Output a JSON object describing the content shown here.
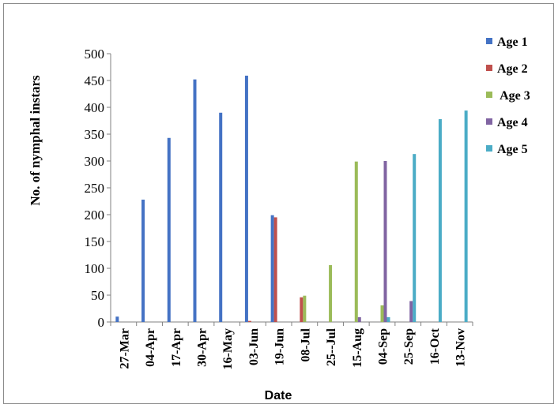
{
  "chart_data": {
    "type": "bar",
    "xlabel": "Date",
    "ylabel": "No. of nymphal instars",
    "ylim": [
      0,
      500
    ],
    "yticks": [
      0,
      50,
      100,
      150,
      200,
      250,
      300,
      350,
      400,
      450,
      500
    ],
    "grid": false,
    "legend_position": "right",
    "categories": [
      "27-Mar",
      "04-Apr",
      "17-Apr",
      "30-Apr",
      "16-May",
      "03-Jun",
      "19-Jun",
      "08-Jul",
      "25--Jul",
      "15-Aug",
      "04-Sep",
      "25-Sep",
      "16-Oct",
      "13-Nov"
    ],
    "series": [
      {
        "name": "Age 1",
        "color": "#4472c4",
        "values": [
          10,
          228,
          343,
          452,
          390,
          459,
          199,
          0,
          0,
          0,
          0,
          0,
          0,
          0
        ]
      },
      {
        "name": "Age 2",
        "color": "#c0504d",
        "values": [
          0,
          0,
          0,
          0,
          0,
          2,
          195,
          46,
          0,
          0,
          0,
          0,
          0,
          0
        ]
      },
      {
        "name": " Age 3",
        "color": "#9bbb59",
        "values": [
          0,
          0,
          0,
          0,
          0,
          0,
          0,
          49,
          106,
          299,
          31,
          0,
          0,
          0
        ]
      },
      {
        "name": "Age 4",
        "color": "#8064a2",
        "values": [
          0,
          0,
          0,
          0,
          0,
          0,
          0,
          0,
          0,
          9,
          300,
          39,
          0,
          0
        ]
      },
      {
        "name": "Age 5",
        "color": "#4bacc6",
        "values": [
          0,
          0,
          0,
          0,
          0,
          0,
          0,
          0,
          0,
          0,
          9,
          313,
          378,
          394
        ]
      }
    ]
  }
}
